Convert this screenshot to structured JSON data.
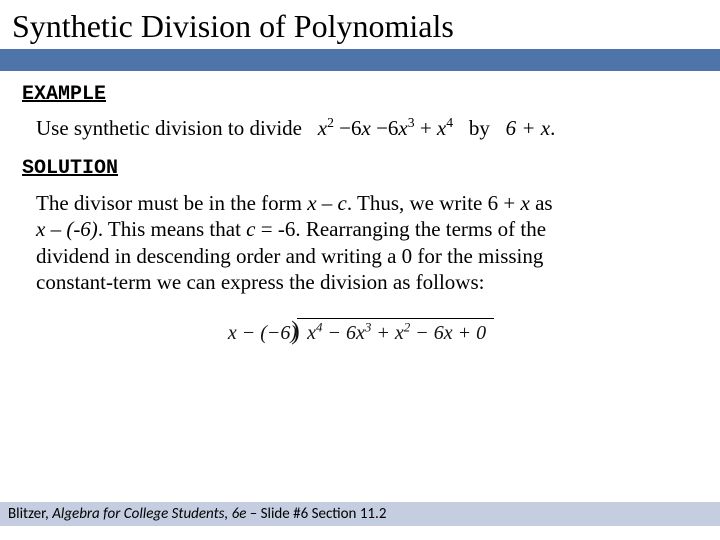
{
  "colors": {
    "title_bar": "#4e74aa",
    "footer_bar": "#c5cee1",
    "background": "#ffffff",
    "text": "#000000"
  },
  "title": "Synthetic Division of Polynomials",
  "labels": {
    "example": "EXAMPLE",
    "solution": "SOLUTION"
  },
  "example": {
    "intro": "Use synthetic division to divide",
    "dividend_terms": [
      {
        "coef": "",
        "var": "x",
        "power": "2"
      },
      {
        "coef": "−6",
        "var": "x",
        "power": ""
      },
      {
        "coef": "−6",
        "var": "x",
        "power": "3"
      },
      {
        "coef": "+",
        "var": "x",
        "power": "4"
      }
    ],
    "by_word": "by",
    "divisor": "6 + x",
    "end_punct": "."
  },
  "solution": {
    "s1a": "The divisor must be in the form ",
    "s1_form": "x – c",
    "s1b": ".  Thus, we write 6 + ",
    "s1_x": "x",
    "s1c": " as",
    "s2_form": "x – (-6)",
    "s2a": ".  This means that ",
    "s2_c": "c",
    "s2b": " = -6.  Rearranging the terms of the",
    "s3": "dividend in descending order and writing a 0 for the missing",
    "s4": "constant-term we can express the division as follows:"
  },
  "long_division": {
    "divisor_text": "x − (−6)",
    "dividend_terms": [
      {
        "coef": "",
        "var": "x",
        "power": "4",
        "sep": ""
      },
      {
        "coef": "6",
        "var": "x",
        "power": "3",
        "sep": " − "
      },
      {
        "coef": "",
        "var": "x",
        "power": "2",
        "sep": " + "
      },
      {
        "coef": "6",
        "var": "x",
        "power": "",
        "sep": " − "
      },
      {
        "coef": "0",
        "var": "",
        "power": "",
        "sep": " + "
      }
    ]
  },
  "footer": {
    "author": "Blitzer, ",
    "book": "Algebra for College Students, 6e",
    "rest": " – Slide #6 Section 11.2"
  }
}
